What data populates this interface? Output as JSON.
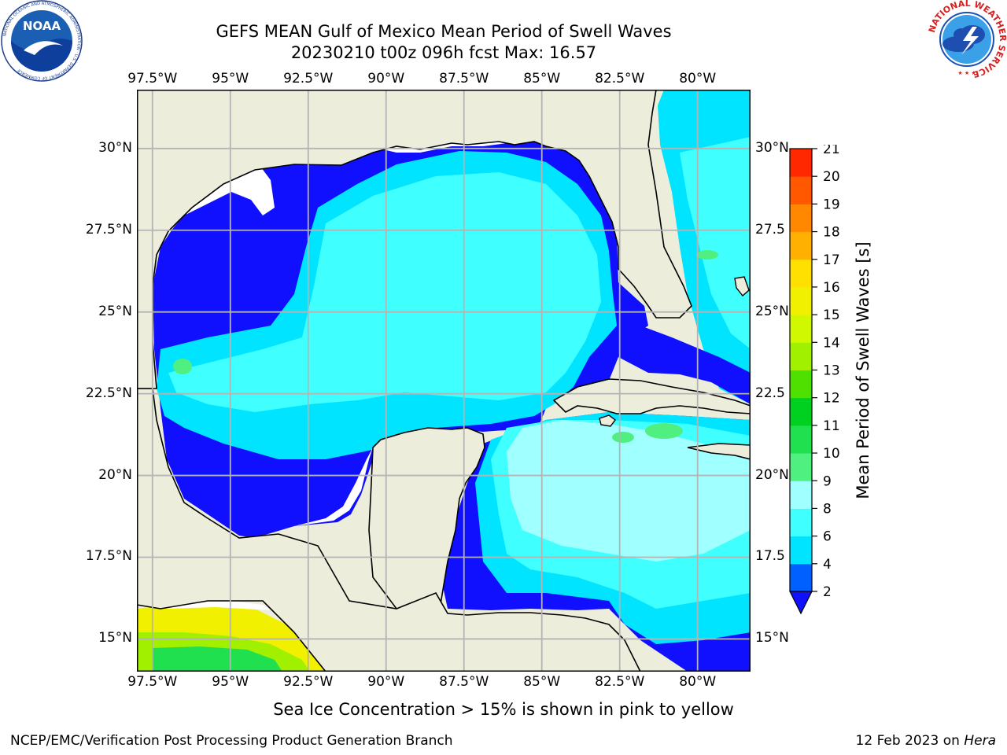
{
  "title": {
    "line1": "GEFS MEAN Gulf of Mexico Mean Period of Swell Waves",
    "line2": "20230210 t00z 096h fcst   Max: 16.57"
  },
  "logos": {
    "noaa": {
      "text": "NOAA",
      "ring_text": "NATIONAL OCEANIC AND ATMOSPHERIC ADMINISTRATION · U.S. DEPARTMENT OF COMMERCE"
    },
    "nws": {
      "ring_text": "NATIONAL WEATHER SERVICE"
    }
  },
  "map": {
    "lon_labels": [
      "97.5°W",
      "95°W",
      "92.5°W",
      "90°W",
      "87.5°W",
      "85°W",
      "82.5°W",
      "80°W"
    ],
    "lat_labels": [
      "30°N",
      "27.5°N",
      "25°N",
      "22.5°N",
      "20°N",
      "17.5°N",
      "15°N"
    ],
    "lat_labels_right": [
      "30°N",
      "27.5",
      "25°N",
      "22.5",
      "20°N",
      "17.5",
      "15°N"
    ],
    "lon_range": [
      -98,
      -78.3
    ],
    "lat_range": [
      14,
      31.8
    ],
    "colors": {
      "land": "#ededdc",
      "grid": "#b4b4b4",
      "no_data": "#ffffff"
    }
  },
  "colorbar": {
    "label": "Mean Period of Swell Waves [s]",
    "ticks": [
      "2",
      "4",
      "6",
      "8",
      "9",
      "10",
      "11",
      "12",
      "13",
      "14",
      "15",
      "16",
      "17",
      "18",
      "19",
      "20",
      "21"
    ],
    "colors": [
      "#0060ff",
      "#00e4ff",
      "#40ffff",
      "#a0ffff",
      "#50f080",
      "#20e050",
      "#00d020",
      "#50e000",
      "#a0f000",
      "#d0f800",
      "#f0f000",
      "#ffe000",
      "#ffb000",
      "#ff8800",
      "#ff5800",
      "#ff2800"
    ],
    "extend_color": "#1010ff"
  },
  "caption": "Sea Ice Concentration > 15% is shown in pink to yellow",
  "footer": {
    "credit": "NCEP/EMC/Verification Post Processing Product Generation Branch",
    "date": "12 Feb 2023 on",
    "machine": "Hera"
  }
}
